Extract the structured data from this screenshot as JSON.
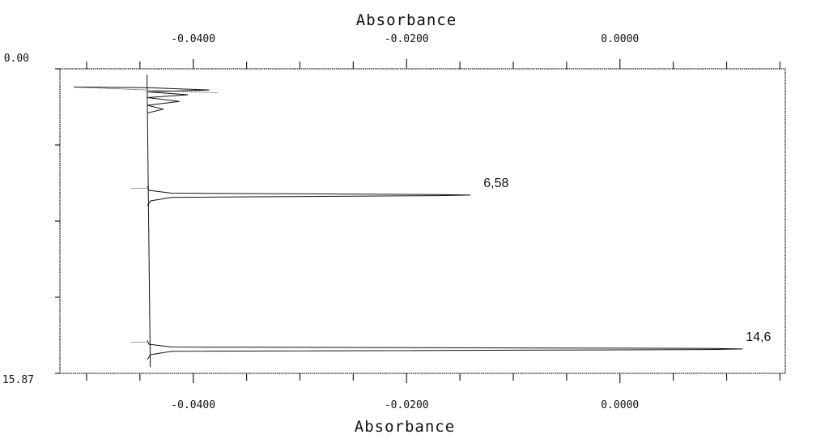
{
  "chart_data": {
    "type": "line",
    "title": "",
    "x_axis_title_top": "Absorbance",
    "x_axis_title_bottom": "Absorbance",
    "x_tick_labels": [
      "-0.0400",
      "-0.0200",
      "0.0000"
    ],
    "x_tick_values": [
      -0.04,
      -0.02,
      0.0
    ],
    "xlim": [
      -0.0525,
      0.0155
    ],
    "ylim": [
      0.0,
      15.87
    ],
    "y_tick_labels": [
      "0.00",
      "15.87"
    ],
    "y_axis_reversed": true,
    "grid": false,
    "baseline_absorbance": -0.0443,
    "peaks": [
      {
        "label": "6,58",
        "retention": 6.58,
        "absorbance": -0.014
      },
      {
        "label": "14,6",
        "retention": 14.6,
        "absorbance": 0.0115
      }
    ],
    "injection_disturbance": {
      "retention": 1.0,
      "min_absorbance": -0.0512,
      "max_absorbance": -0.0385
    }
  }
}
